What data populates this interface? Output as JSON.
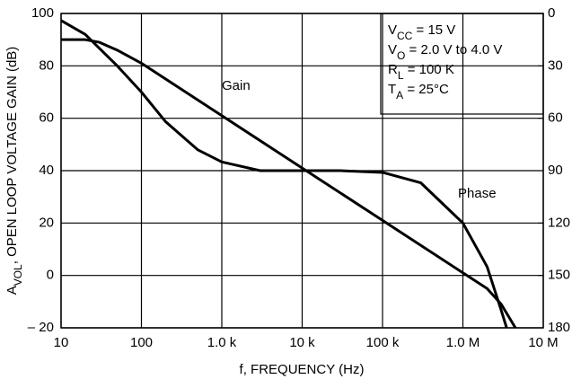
{
  "chart_data": {
    "type": "line",
    "xlabel": "f, FREQUENCY (Hz)",
    "ylabel": [
      {
        "text": "A"
      },
      {
        "text": "VOL",
        "sub": true
      },
      {
        "text": ", OPEN LOOP VOLTAGE GAIN (dB)"
      }
    ],
    "xscale": "log",
    "grid": true,
    "xlim": [
      10,
      10000000
    ],
    "xticks": [
      10,
      100,
      {
        "value": 1000,
        "label": "1.0 k"
      },
      {
        "value": 10000,
        "label": "10 k"
      },
      {
        "value": 100000,
        "label": "100 k"
      },
      {
        "value": 1000000,
        "label": "1.0 M"
      },
      {
        "value": 10000000,
        "label": "10 M"
      }
    ],
    "ylim": [
      -20,
      100
    ],
    "yticks": [
      {
        "value": -20,
        "label": "– 20"
      },
      0,
      20,
      40,
      60,
      80,
      100
    ],
    "y2lim": [
      180,
      0
    ],
    "y2ticks": [
      0,
      30,
      60,
      90,
      120,
      150,
      180
    ],
    "annotations": [
      [
        {
          "text": "V"
        },
        {
          "text": "CC",
          "sub": true
        },
        {
          "text": " = 15 V"
        }
      ],
      [
        {
          "text": "V"
        },
        {
          "text": "O",
          "sub": true
        },
        {
          "text": " = 2.0 V to 4.0 V"
        }
      ],
      [
        {
          "text": "R"
        },
        {
          "text": "L",
          "sub": true
        },
        {
          "text": " = 100 K"
        }
      ],
      [
        {
          "text": "T"
        },
        {
          "text": "A",
          "sub": true
        },
        {
          "text": " = 25°C"
        }
      ]
    ],
    "series": [
      {
        "name": "Gain",
        "color": "#000000",
        "x": [
          10,
          20,
          30,
          50,
          100,
          1000,
          10000,
          100000,
          1000000,
          2000000,
          3000000,
          4500000
        ],
        "values": [
          90,
          90,
          89,
          86,
          81,
          61,
          41,
          21,
          1,
          -5,
          -11,
          -20
        ]
      },
      {
        "name": "Phase",
        "color": "#000000",
        "axis": "y2",
        "x": [
          10,
          20,
          50,
          100,
          200,
          500,
          1000,
          3000,
          10000,
          30000,
          100000,
          300000,
          1000000,
          2000000,
          3000000,
          3500000
        ],
        "values": [
          4,
          12,
          30,
          45,
          62,
          78,
          85,
          90,
          90,
          90,
          91,
          97,
          120,
          145,
          170,
          180
        ]
      }
    ]
  }
}
